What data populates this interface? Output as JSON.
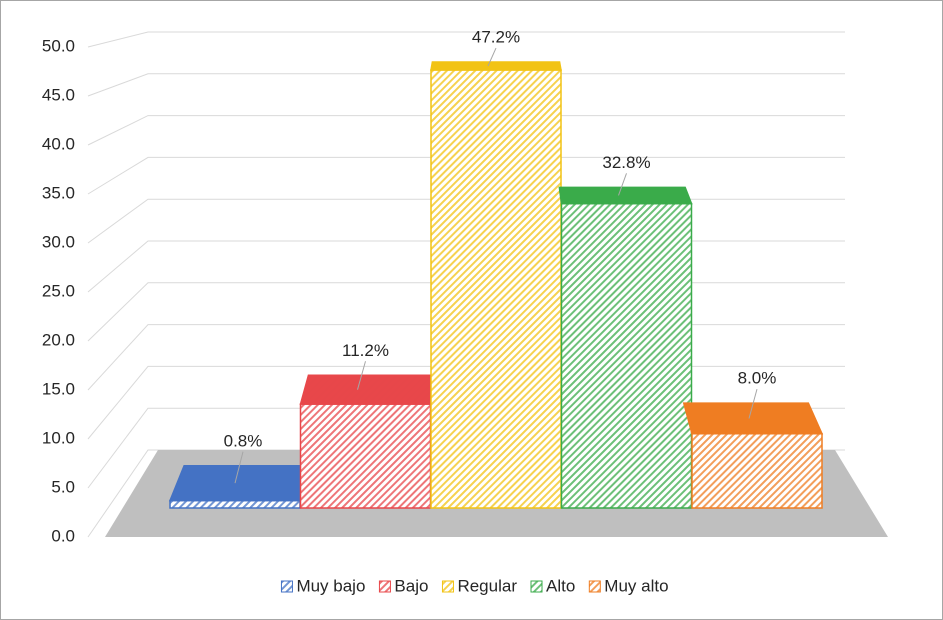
{
  "chart_data": {
    "type": "bar3d",
    "series": [
      {
        "name": "Muy bajo",
        "color": "#4472c4",
        "values": [
          0.8
        ],
        "value_labels": [
          "0.8%"
        ]
      },
      {
        "name": "Bajo",
        "color": "#e8474a",
        "values": [
          11.2
        ],
        "value_labels": [
          "11.2%"
        ]
      },
      {
        "name": "Regular",
        "color": "#f2c314",
        "values": [
          47.2
        ],
        "value_labels": [
          "47.2%"
        ]
      },
      {
        "name": "Alto",
        "color": "#3aab4a",
        "values": [
          32.8
        ],
        "value_labels": [
          "32.8%"
        ]
      },
      {
        "name": "Muy alto",
        "color": "#ef7d22",
        "values": [
          8.0
        ],
        "value_labels": [
          "8.0%"
        ]
      }
    ],
    "ylim": [
      0,
      50
    ],
    "yticks": [
      {
        "value": 0,
        "label": "0.0"
      },
      {
        "value": 5,
        "label": "5.0"
      },
      {
        "value": 10,
        "label": "10.0"
      },
      {
        "value": 15,
        "label": "15.0"
      },
      {
        "value": 20,
        "label": "20.0"
      },
      {
        "value": 25,
        "label": "25.0"
      },
      {
        "value": 30,
        "label": "30.0"
      },
      {
        "value": 35,
        "label": "35.0"
      },
      {
        "value": 40,
        "label": "40.0"
      },
      {
        "value": 45,
        "label": "45.0"
      },
      {
        "value": 50,
        "label": "50.0"
      }
    ],
    "grid": true,
    "legend": "bottom"
  }
}
